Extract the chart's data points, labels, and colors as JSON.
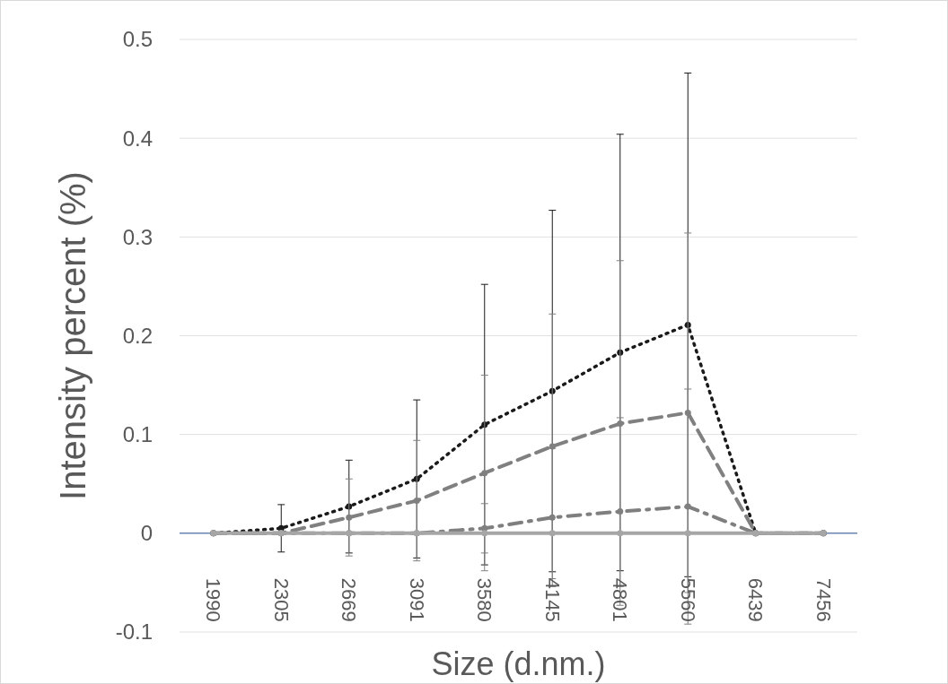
{
  "chart_data": {
    "type": "line",
    "xlabel": "Size (d.nm.)",
    "ylabel": "Intensity percent (%)",
    "categories": [
      "1990",
      "2305",
      "2669",
      "3091",
      "3580",
      "4145",
      "4801",
      "5560",
      "6439",
      "7456"
    ],
    "ylim": [
      -0.1,
      0.5
    ],
    "yticks": [
      -0.1,
      0,
      0.1,
      0.2,
      0.3,
      0.4,
      0.5
    ],
    "grid": "y",
    "marker": "circle",
    "ref_lines": [
      {
        "axis": "y",
        "value": 0,
        "color": "#2f5597"
      }
    ],
    "series": [
      {
        "color": "#1a1a1a",
        "line_style": "dotted",
        "values": [
          0,
          0.005,
          0.027,
          0.055,
          0.11,
          0.144,
          0.183,
          0.211,
          0,
          0
        ],
        "errors": [
          null,
          0.024,
          0.047,
          0.08,
          0.142,
          0.183,
          0.221,
          0.255,
          null,
          null
        ]
      },
      {
        "color": "#808080",
        "line_style": "dashed",
        "values": [
          0,
          0,
          0.016,
          0.033,
          0.061,
          0.088,
          0.111,
          0.122,
          0,
          0
        ],
        "errors": [
          null,
          null,
          0.039,
          0.061,
          0.099,
          0.134,
          0.165,
          0.182,
          null,
          null
        ]
      },
      {
        "color": "#7f7f7f",
        "line_style": "dashdot",
        "values": [
          0,
          0,
          0,
          0,
          0.005,
          0.016,
          0.022,
          0.027,
          0,
          0
        ],
        "errors": [
          null,
          null,
          null,
          null,
          0.025,
          0.07,
          0.095,
          0.119,
          null,
          null
        ]
      },
      {
        "color": "#a6a6a6",
        "line_style": "solid",
        "values": [
          0,
          0,
          0,
          0,
          0,
          0,
          0,
          0,
          0,
          0
        ]
      }
    ]
  }
}
